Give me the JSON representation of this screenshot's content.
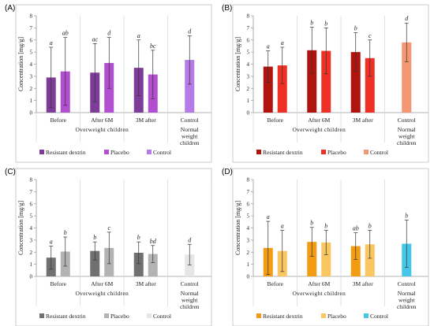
{
  "panels": [
    "(A)",
    "(B)",
    "(C)",
    "(D)"
  ],
  "chart_data": [
    {
      "type": "bar",
      "panel": "(A)",
      "ylabel": "Concentration [mg/g]",
      "ylim": [
        0,
        8
      ],
      "yticks": [
        0,
        1,
        2,
        3,
        4,
        5,
        6,
        7,
        8
      ],
      "categories": [
        "Before",
        "After 6M",
        "3M after",
        "Control"
      ],
      "group_labels": [
        "Overweight children",
        "Normal weight children"
      ],
      "series": [
        {
          "name": "Resistant dextrin",
          "color": "#7d3c98",
          "values": [
            2.9,
            3.3,
            3.7,
            null
          ],
          "errors": [
            2.5,
            2.4,
            2.3,
            null
          ],
          "letters": [
            "a",
            "ac",
            "a",
            ""
          ]
        },
        {
          "name": "Placebo",
          "color": "#b24fd0",
          "values": [
            3.4,
            4.1,
            3.15,
            null
          ],
          "errors": [
            2.8,
            2.1,
            2.0,
            null
          ],
          "letters": [
            "ab",
            "d",
            "bc",
            ""
          ]
        },
        {
          "name": "Control",
          "color": "#b57be6",
          "values": [
            null,
            null,
            null,
            4.35
          ],
          "errors": [
            null,
            null,
            null,
            2.0
          ],
          "letters": [
            "",
            "",
            "",
            "d"
          ]
        }
      ],
      "grid": false
    },
    {
      "type": "bar",
      "panel": "(B)",
      "ylabel": "Concentration [mg/g]",
      "ylim": [
        0,
        8
      ],
      "yticks": [
        0,
        1,
        2,
        3,
        4,
        5,
        6,
        7,
        8
      ],
      "categories": [
        "Before",
        "After 6M",
        "3M after",
        "Control"
      ],
      "group_labels": [
        "Overweight children",
        "Normal weight children"
      ],
      "series": [
        {
          "name": "Resistant dextrin",
          "color": "#b0140f",
          "values": [
            3.8,
            5.15,
            5.0,
            null
          ],
          "errors": [
            1.3,
            1.9,
            1.6,
            null
          ],
          "letters": [
            "a",
            "b",
            "b",
            ""
          ]
        },
        {
          "name": "Placebo",
          "color": "#ee3124",
          "values": [
            3.9,
            5.1,
            4.5,
            null
          ],
          "errors": [
            1.5,
            1.9,
            1.5,
            null
          ],
          "letters": [
            "a",
            "b",
            "c",
            ""
          ]
        },
        {
          "name": "Control",
          "color": "#f59773",
          "values": [
            null,
            null,
            null,
            5.8
          ],
          "errors": [
            null,
            null,
            null,
            1.6
          ],
          "letters": [
            "",
            "",
            "",
            "d"
          ]
        }
      ],
      "grid": false
    },
    {
      "type": "bar",
      "panel": "(C)",
      "ylabel": "Concentration [mg/g]",
      "ylim": [
        0,
        8
      ],
      "yticks": [
        0,
        1,
        2,
        3,
        4,
        5,
        6,
        7,
        8
      ],
      "categories": [
        "Before",
        "After 6M",
        "3M after",
        "Control"
      ],
      "group_labels": [
        "Overweight children",
        "Normal weight children"
      ],
      "series": [
        {
          "name": "Resistant dextrin",
          "color": "#707070",
          "values": [
            1.55,
            2.1,
            1.95,
            null
          ],
          "errors": [
            0.95,
            0.75,
            0.9,
            null
          ],
          "letters": [
            "a",
            "b",
            "b",
            ""
          ]
        },
        {
          "name": "Placebo",
          "color": "#b3b3b3",
          "values": [
            2.05,
            2.35,
            1.85,
            null
          ],
          "errors": [
            1.2,
            1.3,
            0.7,
            null
          ],
          "letters": [
            "b",
            "c",
            "bd",
            ""
          ]
        },
        {
          "name": "Control",
          "color": "#e6e6e6",
          "values": [
            null,
            null,
            null,
            1.8
          ],
          "errors": [
            null,
            null,
            null,
            0.85
          ],
          "letters": [
            "",
            "",
            "",
            "d"
          ]
        }
      ],
      "grid": false
    },
    {
      "type": "bar",
      "panel": "(D)",
      "ylabel": "Concentration [mg/g]",
      "ylim": [
        0,
        8
      ],
      "yticks": [
        0,
        1,
        2,
        3,
        4,
        5,
        6,
        7,
        8
      ],
      "categories": [
        "Before",
        "After 6M",
        "3M after",
        "Control"
      ],
      "group_labels": [
        "Overweight children",
        "Normal weight children"
      ],
      "series": [
        {
          "name": "Resistant dextrin",
          "color": "#f39c12",
          "values": [
            2.35,
            2.85,
            2.5,
            null
          ],
          "errors": [
            2.2,
            1.2,
            1.1,
            null
          ],
          "letters": [
            "a",
            "b",
            "ab",
            ""
          ]
        },
        {
          "name": "Placebo",
          "color": "#f9c660",
          "values": [
            2.1,
            2.8,
            2.65,
            null
          ],
          "errors": [
            1.7,
            1.0,
            1.15,
            null
          ],
          "letters": [
            "a",
            "b",
            "b",
            ""
          ]
        },
        {
          "name": "Control",
          "color": "#45c8e8",
          "values": [
            null,
            null,
            null,
            2.7
          ],
          "errors": [
            null,
            null,
            null,
            1.95
          ],
          "letters": [
            "",
            "",
            "",
            "b"
          ]
        }
      ],
      "grid": false
    }
  ]
}
